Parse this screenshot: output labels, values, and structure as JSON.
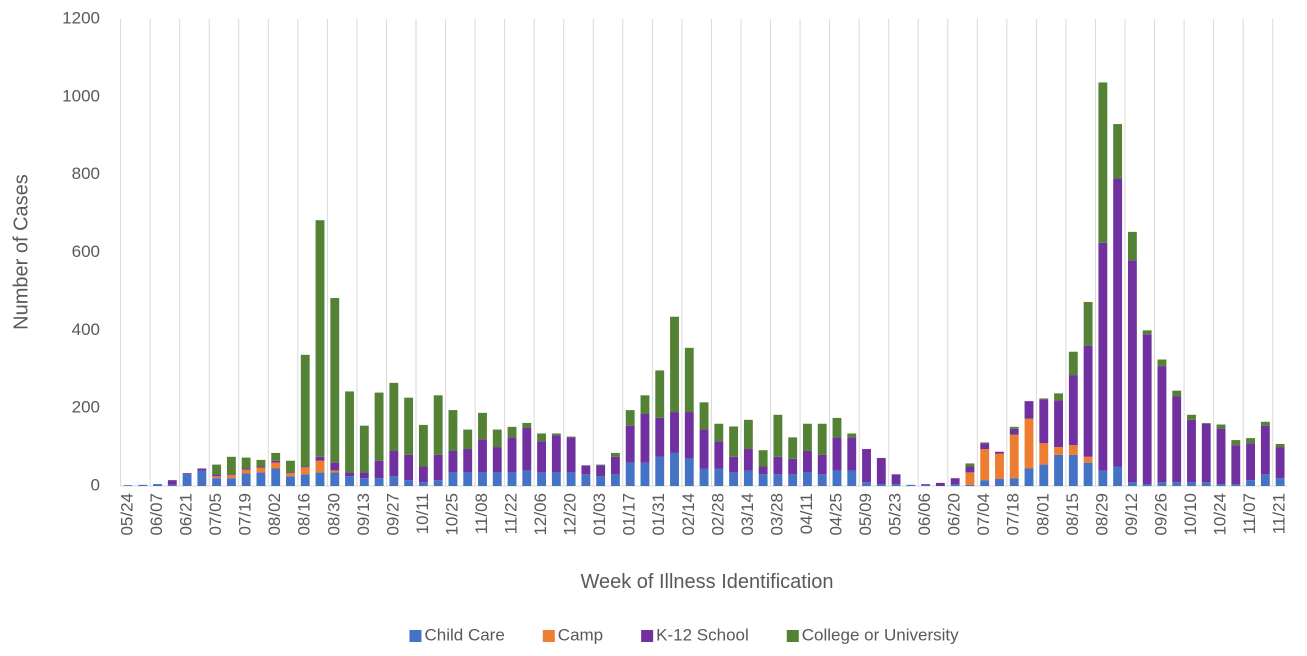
{
  "chart_data": {
    "type": "stacked_bar",
    "x_label": "Week of Illness Identification",
    "y_label": "Number of Cases",
    "categories": [
      "05/24",
      null,
      "06/07",
      null,
      "06/21",
      null,
      "07/05",
      null,
      "07/19",
      null,
      "08/02",
      null,
      "08/16",
      null,
      "08/30",
      null,
      "09/13",
      null,
      "09/27",
      null,
      "10/11",
      null,
      "10/25",
      null,
      "11/08",
      null,
      "11/22",
      null,
      "12/06",
      null,
      "12/20",
      null,
      "01/03",
      null,
      "01/17",
      null,
      "01/31",
      null,
      "02/14",
      null,
      "02/28",
      null,
      "03/14",
      null,
      "03/28",
      null,
      "04/11",
      null,
      "04/25",
      null,
      "05/09",
      null,
      "05/23",
      null,
      "06/06",
      null,
      "06/20",
      null,
      "07/04",
      null,
      "07/18",
      null,
      "08/01",
      null,
      "08/15",
      null,
      "08/29",
      null,
      "09/12",
      null,
      "09/26",
      null,
      "10/10",
      null,
      "10/24",
      null,
      "11/07",
      null,
      "11/21"
    ],
    "series": [
      {
        "name": "Child Care",
        "color": "#4472c4",
        "values": [
          2,
          3,
          5,
          3,
          30,
          40,
          20,
          20,
          32,
          35,
          45,
          25,
          30,
          35,
          35,
          25,
          20,
          20,
          25,
          15,
          10,
          15,
          35,
          35,
          35,
          35,
          35,
          40,
          35,
          35,
          35,
          30,
          25,
          30,
          60,
          60,
          75,
          85,
          70,
          45,
          45,
          35,
          40,
          30,
          30,
          30,
          35,
          30,
          40,
          40,
          10,
          5,
          5,
          3,
          3,
          0,
          5,
          3,
          15,
          18,
          20,
          45,
          55,
          80,
          80,
          60,
          40,
          50,
          10,
          5,
          10,
          10,
          10,
          10,
          5,
          5,
          15,
          30,
          20
        ]
      },
      {
        "name": "Camp",
        "color": "#ed7d31",
        "values": [
          0,
          0,
          0,
          0,
          0,
          0,
          5,
          8,
          10,
          12,
          15,
          8,
          18,
          30,
          5,
          0,
          0,
          0,
          0,
          0,
          0,
          0,
          0,
          0,
          0,
          0,
          0,
          0,
          0,
          0,
          0,
          0,
          0,
          0,
          0,
          0,
          0,
          0,
          0,
          0,
          0,
          0,
          0,
          0,
          0,
          0,
          0,
          0,
          0,
          0,
          0,
          0,
          0,
          0,
          0,
          0,
          0,
          32,
          80,
          65,
          112,
          128,
          55,
          20,
          25,
          15,
          0,
          0,
          0,
          0,
          0,
          0,
          0,
          0,
          0,
          0,
          0,
          0,
          0
        ]
      },
      {
        "name": "K-12 School",
        "color": "#7030a0",
        "values": [
          0,
          0,
          0,
          12,
          3,
          5,
          5,
          2,
          3,
          3,
          5,
          2,
          2,
          10,
          20,
          10,
          15,
          45,
          65,
          65,
          40,
          65,
          55,
          60,
          85,
          65,
          90,
          110,
          80,
          95,
          90,
          23,
          28,
          45,
          95,
          125,
          100,
          105,
          120,
          100,
          70,
          40,
          55,
          20,
          45,
          40,
          55,
          50,
          85,
          85,
          85,
          67,
          25,
          0,
          2,
          8,
          15,
          15,
          15,
          5,
          15,
          45,
          113,
          120,
          180,
          285,
          585,
          740,
          570,
          385,
          298,
          220,
          160,
          150,
          143,
          100,
          95,
          125,
          80
        ]
      },
      {
        "name": "College or University",
        "color": "#548235",
        "values": [
          0,
          0,
          0,
          0,
          0,
          0,
          25,
          45,
          28,
          17,
          20,
          30,
          287,
          608,
          423,
          208,
          120,
          175,
          175,
          147,
          107,
          153,
          105,
          50,
          68,
          45,
          27,
          12,
          20,
          5,
          2,
          0,
          2,
          10,
          40,
          48,
          122,
          245,
          165,
          70,
          45,
          78,
          75,
          42,
          108,
          55,
          70,
          80,
          50,
          10,
          0,
          0,
          0,
          0,
          0,
          0,
          0,
          8,
          2,
          0,
          5,
          0,
          2,
          18,
          60,
          113,
          412,
          140,
          73,
          10,
          17,
          15,
          13,
          2,
          10,
          13,
          13,
          10,
          8
        ]
      }
    ],
    "ylim": [
      0,
      1200
    ],
    "yticks": [
      0,
      200,
      400,
      600,
      800,
      1000,
      1200
    ],
    "vertical_grid": true,
    "legend": "bottom"
  }
}
